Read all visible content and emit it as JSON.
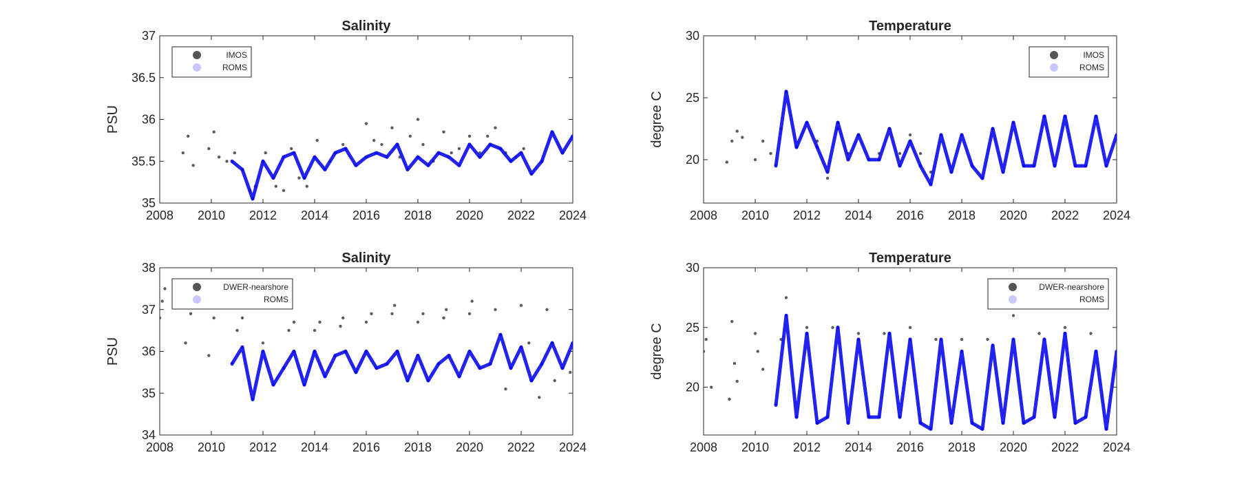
{
  "colors": {
    "observed": "#333333",
    "model": "#0a0af0",
    "legend_model": "#c8c8ff"
  },
  "chart_data": [
    {
      "type": "scatter",
      "title": "Salinity",
      "ylabel": "PSU",
      "xlim": [
        2008,
        2024
      ],
      "ylim": [
        35,
        37
      ],
      "xticks": [
        "2008",
        "2010",
        "2012",
        "2014",
        "2016",
        "2018",
        "2020",
        "2022",
        "2024"
      ],
      "yticks": [
        "35",
        "35.5",
        "36",
        "36.5",
        "37"
      ],
      "legend": {
        "position": "top-left",
        "entries": [
          "IMOS",
          "ROMS"
        ]
      },
      "series": [
        {
          "name": "IMOS",
          "x": [
            2008.9,
            2009.1,
            2009.3,
            2009.9,
            2010.1,
            2010.3,
            2010.6,
            2010.9,
            2011.2,
            2011.5,
            2011.7,
            2012.1,
            2012.5,
            2012.8,
            2013.1,
            2013.4,
            2013.7,
            2014.1,
            2014.6,
            2015.1,
            2015.6,
            2016.0,
            2016.3,
            2016.6,
            2017.0,
            2017.3,
            2017.7,
            2018.0,
            2018.2,
            2018.6,
            2019.0,
            2019.3,
            2019.6,
            2020.0,
            2020.4,
            2020.7,
            2021.0,
            2021.4,
            2021.8,
            2022.1
          ],
          "y": [
            35.6,
            35.8,
            35.45,
            35.65,
            35.85,
            35.55,
            35.5,
            35.6,
            35.4,
            35.15,
            35.2,
            35.6,
            35.2,
            35.15,
            35.65,
            35.3,
            35.2,
            35.75,
            35.5,
            35.7,
            35.45,
            35.95,
            35.75,
            35.7,
            35.9,
            35.55,
            35.8,
            36.0,
            35.7,
            35.5,
            35.85,
            35.6,
            35.65,
            35.8,
            35.6,
            35.8,
            35.9,
            35.6,
            35.55,
            35.65
          ]
        },
        {
          "name": "ROMS",
          "x": [
            2010.8,
            2011.2,
            2011.6,
            2012.0,
            2012.4,
            2012.8,
            2013.2,
            2013.6,
            2014.0,
            2014.4,
            2014.8,
            2015.2,
            2015.6,
            2016.0,
            2016.4,
            2016.8,
            2017.2,
            2017.6,
            2018.0,
            2018.4,
            2018.8,
            2019.2,
            2019.6,
            2020.0,
            2020.4,
            2020.8,
            2021.2,
            2021.6,
            2022.0,
            2022.4,
            2022.8,
            2023.2,
            2023.6,
            2024.0
          ],
          "y": [
            35.5,
            35.4,
            35.05,
            35.5,
            35.3,
            35.55,
            35.6,
            35.3,
            35.55,
            35.4,
            35.6,
            35.65,
            35.45,
            35.55,
            35.6,
            35.55,
            35.7,
            35.4,
            35.55,
            35.45,
            35.6,
            35.55,
            35.45,
            35.7,
            35.55,
            35.7,
            35.65,
            35.5,
            35.6,
            35.35,
            35.5,
            35.85,
            35.6,
            35.8
          ]
        }
      ]
    },
    {
      "type": "scatter",
      "title": "Temperature",
      "ylabel": "degree C",
      "xlim": [
        2008,
        2024
      ],
      "ylim": [
        16.5,
        30
      ],
      "xticks": [
        "2008",
        "2010",
        "2012",
        "2014",
        "2016",
        "2018",
        "2020",
        "2022",
        "2024"
      ],
      "yticks": [
        "20",
        "25",
        "30"
      ],
      "legend": {
        "position": "top-right",
        "entries": [
          "IMOS",
          "ROMS"
        ]
      },
      "series": [
        {
          "name": "IMOS",
          "x": [
            2008.9,
            2009.1,
            2009.3,
            2009.5,
            2010.0,
            2010.3,
            2010.6,
            2011.0,
            2011.2,
            2011.6,
            2012.0,
            2012.4,
            2012.8,
            2013.2,
            2013.6,
            2014.0,
            2014.4,
            2014.8,
            2015.2,
            2015.6,
            2016.0,
            2016.4,
            2016.8,
            2017.2
          ],
          "y": [
            19.8,
            21.5,
            22.3,
            21.8,
            20.0,
            21.5,
            20.5,
            22.5,
            25.5,
            21.0,
            23.0,
            21.5,
            18.5,
            22.5,
            20.5,
            22.0,
            20.0,
            20.5,
            22.5,
            20.5,
            22.0,
            20.5,
            19.0,
            22.0
          ]
        },
        {
          "name": "ROMS",
          "x": [
            2010.8,
            2011.2,
            2011.6,
            2012.0,
            2012.4,
            2012.8,
            2013.2,
            2013.6,
            2014.0,
            2014.4,
            2014.8,
            2015.2,
            2015.6,
            2016.0,
            2016.4,
            2016.8,
            2017.2,
            2017.6,
            2018.0,
            2018.4,
            2018.8,
            2019.2,
            2019.6,
            2020.0,
            2020.4,
            2020.8,
            2021.2,
            2021.6,
            2022.0,
            2022.4,
            2022.8,
            2023.2,
            2023.6,
            2024.0
          ],
          "y": [
            19.5,
            25.5,
            21.0,
            23.0,
            21.0,
            19.0,
            23.0,
            20.0,
            22.0,
            20.0,
            20.0,
            22.5,
            19.5,
            21.5,
            19.5,
            18.0,
            22.0,
            19.0,
            22.0,
            19.5,
            18.5,
            22.5,
            19.0,
            23.0,
            19.5,
            19.5,
            23.5,
            19.5,
            23.5,
            19.5,
            19.5,
            23.5,
            19.5,
            22.0
          ]
        }
      ]
    },
    {
      "type": "scatter",
      "title": "Salinity",
      "ylabel": "PSU",
      "xlim": [
        2008,
        2024
      ],
      "ylim": [
        34,
        38
      ],
      "xticks": [
        "2008",
        "2010",
        "2012",
        "2014",
        "2016",
        "2018",
        "2020",
        "2022",
        "2024"
      ],
      "yticks": [
        "34",
        "35",
        "36",
        "37",
        "38"
      ],
      "legend": {
        "position": "top-left",
        "entries": [
          "DWER-nearshore",
          "ROMS"
        ]
      },
      "series": [
        {
          "name": "DWER-nearshore",
          "x": [
            2008.0,
            2008.1,
            2008.2,
            2009.0,
            2009.2,
            2009.9,
            2010.1,
            2011.0,
            2011.2,
            2012.0,
            2013.0,
            2013.2,
            2014.0,
            2014.2,
            2015.0,
            2015.1,
            2016.0,
            2016.2,
            2017.0,
            2017.1,
            2018.0,
            2018.2,
            2019.0,
            2019.1,
            2020.0,
            2020.1,
            2021.0,
            2021.4,
            2022.0,
            2022.3,
            2022.7,
            2023.0,
            2023.3,
            2023.9
          ],
          "y": [
            36.8,
            37.2,
            37.5,
            36.2,
            36.9,
            35.9,
            36.8,
            36.5,
            36.8,
            36.2,
            36.5,
            36.7,
            36.5,
            36.7,
            36.6,
            36.8,
            36.7,
            36.9,
            36.9,
            37.1,
            36.7,
            36.9,
            36.8,
            37.0,
            36.9,
            37.2,
            37.0,
            35.1,
            37.1,
            36.2,
            34.9,
            37.0,
            35.3,
            35.5
          ]
        },
        {
          "name": "ROMS",
          "x": [
            2010.8,
            2011.2,
            2011.6,
            2012.0,
            2012.4,
            2012.8,
            2013.2,
            2013.6,
            2014.0,
            2014.4,
            2014.8,
            2015.2,
            2015.6,
            2016.0,
            2016.4,
            2016.8,
            2017.2,
            2017.6,
            2018.0,
            2018.4,
            2018.8,
            2019.2,
            2019.6,
            2020.0,
            2020.4,
            2020.8,
            2021.2,
            2021.6,
            2022.0,
            2022.4,
            2022.8,
            2023.2,
            2023.6,
            2024.0
          ],
          "y": [
            35.7,
            36.1,
            34.85,
            36.0,
            35.2,
            35.6,
            36.0,
            35.2,
            36.0,
            35.4,
            35.9,
            36.0,
            35.5,
            36.0,
            35.6,
            35.7,
            36.0,
            35.3,
            35.9,
            35.3,
            35.7,
            35.9,
            35.4,
            36.0,
            35.6,
            35.7,
            36.4,
            35.6,
            36.1,
            35.3,
            35.7,
            36.2,
            35.6,
            36.2
          ]
        }
      ]
    },
    {
      "type": "scatter",
      "title": "Temperature",
      "ylabel": "degree C",
      "xlim": [
        2008,
        2024
      ],
      "ylim": [
        16,
        30
      ],
      "xticks": [
        "2008",
        "2010",
        "2012",
        "2014",
        "2016",
        "2018",
        "2020",
        "2022",
        "2024"
      ],
      "yticks": [
        "20",
        "25",
        "30"
      ],
      "legend": {
        "position": "top-right",
        "entries": [
          "DWER-nearshore",
          "ROMS"
        ]
      },
      "series": [
        {
          "name": "DWER-nearshore",
          "x": [
            2008.0,
            2008.1,
            2008.3,
            2009.0,
            2009.1,
            2009.2,
            2009.3,
            2010.0,
            2010.1,
            2010.3,
            2011.0,
            2011.2,
            2012.0,
            2013.0,
            2014.0,
            2015.0,
            2016.0,
            2017.0,
            2018.0,
            2019.0,
            2020.0,
            2021.0,
            2022.0,
            2023.0
          ],
          "y": [
            23.0,
            24.0,
            20.0,
            19.0,
            25.5,
            22.0,
            20.5,
            24.5,
            23.0,
            21.5,
            24.0,
            27.5,
            25.0,
            25.0,
            24.5,
            24.5,
            25.0,
            24.0,
            24.0,
            24.0,
            26.0,
            24.5,
            25.0,
            24.5
          ]
        },
        {
          "name": "ROMS",
          "x": [
            2010.8,
            2011.2,
            2011.6,
            2012.0,
            2012.4,
            2012.8,
            2013.2,
            2013.6,
            2014.0,
            2014.4,
            2014.8,
            2015.2,
            2015.6,
            2016.0,
            2016.4,
            2016.8,
            2017.2,
            2017.6,
            2018.0,
            2018.4,
            2018.8,
            2019.2,
            2019.6,
            2020.0,
            2020.4,
            2020.8,
            2021.2,
            2021.6,
            2022.0,
            2022.4,
            2022.8,
            2023.2,
            2023.6,
            2024.0
          ],
          "y": [
            18.5,
            26.0,
            17.5,
            24.5,
            17.0,
            17.5,
            25.0,
            17.0,
            24.0,
            17.5,
            17.5,
            24.5,
            17.5,
            24.0,
            17.0,
            16.5,
            24.0,
            17.0,
            23.0,
            17.0,
            16.5,
            23.5,
            17.0,
            24.0,
            17.0,
            17.5,
            24.0,
            17.5,
            24.5,
            17.0,
            17.5,
            23.0,
            16.5,
            23.0
          ]
        }
      ]
    }
  ]
}
